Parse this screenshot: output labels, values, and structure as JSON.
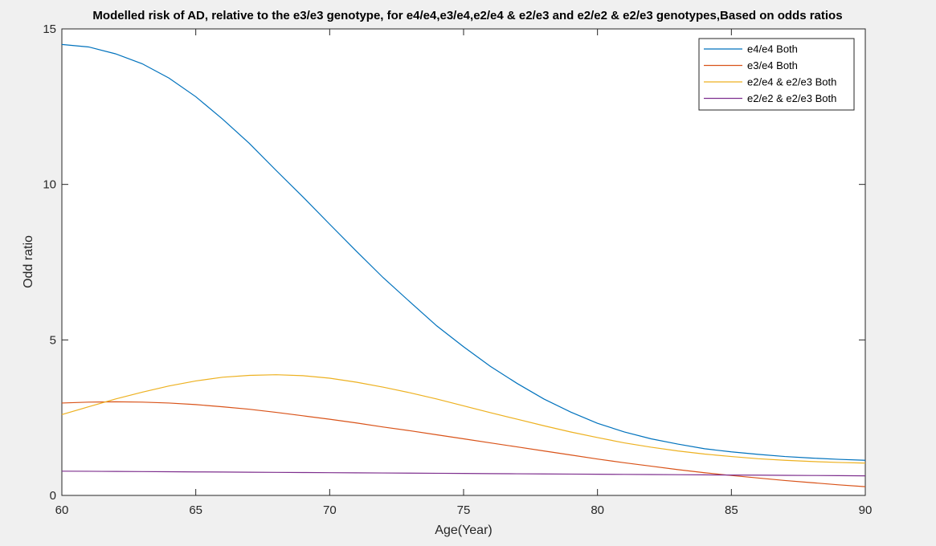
{
  "chart_data": {
    "type": "line",
    "title": "Modelled risk of AD, relative to the e3/e3 genotype, for e4/e4,e3/e4,e2/e4 & e2/e3 and e2/e2 & e2/e3 genotypes,Based on odds ratios",
    "xlabel": "Age(Year)",
    "ylabel": "Odd ratio",
    "xlim": [
      60,
      90
    ],
    "ylim": [
      0,
      15
    ],
    "xticks": [
      "60",
      "65",
      "70",
      "75",
      "80",
      "85",
      "90"
    ],
    "yticks": [
      "0",
      "5",
      "10",
      "15"
    ],
    "grid": false,
    "legend_position": "top-right",
    "x": [
      60,
      61,
      62,
      63,
      64,
      65,
      66,
      67,
      68,
      69,
      70,
      71,
      72,
      73,
      74,
      75,
      76,
      77,
      78,
      79,
      80,
      81,
      82,
      83,
      84,
      85,
      86,
      87,
      88,
      89,
      90
    ],
    "series": [
      {
        "name": "e4/e4 Both",
        "color": "#0072BD",
        "values": [
          14.5,
          14.42,
          14.2,
          13.88,
          13.42,
          12.82,
          12.1,
          11.32,
          10.45,
          9.6,
          8.72,
          7.85,
          7.0,
          6.22,
          5.45,
          4.78,
          4.15,
          3.6,
          3.1,
          2.68,
          2.32,
          2.04,
          1.82,
          1.65,
          1.5,
          1.4,
          1.32,
          1.25,
          1.2,
          1.16,
          1.13
        ]
      },
      {
        "name": "e3/e4 Both",
        "color": "#D95319",
        "values": [
          2.97,
          3.0,
          3.01,
          3.0,
          2.97,
          2.92,
          2.85,
          2.77,
          2.67,
          2.56,
          2.45,
          2.33,
          2.2,
          2.08,
          1.95,
          1.82,
          1.69,
          1.56,
          1.43,
          1.3,
          1.17,
          1.05,
          0.94,
          0.83,
          0.73,
          0.64,
          0.56,
          0.48,
          0.41,
          0.34,
          0.28
        ]
      },
      {
        "name": "e2/e4 & e2/e3 Both",
        "color": "#EDB120",
        "values": [
          2.6,
          2.85,
          3.1,
          3.32,
          3.52,
          3.68,
          3.8,
          3.86,
          3.88,
          3.85,
          3.77,
          3.64,
          3.48,
          3.3,
          3.1,
          2.88,
          2.66,
          2.45,
          2.24,
          2.04,
          1.86,
          1.69,
          1.55,
          1.43,
          1.33,
          1.25,
          1.18,
          1.13,
          1.09,
          1.06,
          1.04
        ]
      },
      {
        "name": "e2/e2 & e2/e3 Both",
        "color": "#7E2F8E",
        "values": [
          0.78,
          0.776,
          0.771,
          0.766,
          0.761,
          0.756,
          0.751,
          0.746,
          0.741,
          0.736,
          0.731,
          0.726,
          0.721,
          0.716,
          0.711,
          0.706,
          0.701,
          0.696,
          0.691,
          0.686,
          0.681,
          0.676,
          0.671,
          0.666,
          0.661,
          0.656,
          0.651,
          0.646,
          0.641,
          0.636,
          0.63
        ]
      }
    ]
  }
}
